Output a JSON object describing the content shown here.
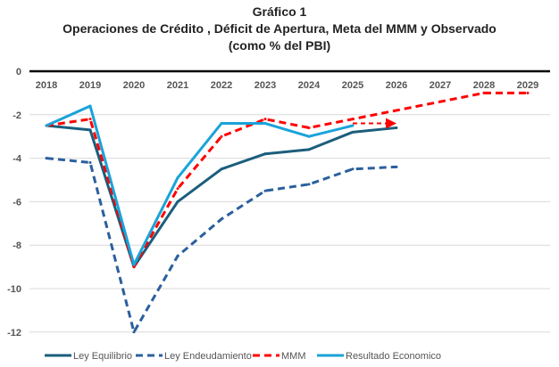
{
  "chart_data": {
    "type": "line",
    "title": "Gráfico 1",
    "subtitle": "Operaciones de Crédito , Déficit de Apertura, Meta del MMM y Observado",
    "subtitle2": "(como % del PBI)",
    "xlabel": "",
    "ylabel": "",
    "x": [
      "2018",
      "2019",
      "2020",
      "2021",
      "2022",
      "2023",
      "2024",
      "2025",
      "2026",
      "2027",
      "2028",
      "2029"
    ],
    "yticks": [
      0,
      -2,
      -4,
      -6,
      -8,
      -10,
      -12
    ],
    "ylim": [
      -12.3,
      0
    ],
    "grid": true,
    "legend_position": "bottom",
    "series": [
      {
        "name": "Ley Equilibrio",
        "color": "#1b5e7c",
        "style": "solid",
        "values": [
          -2.5,
          -2.7,
          -9.0,
          -6.0,
          -4.5,
          -3.8,
          -3.6,
          -2.8,
          -2.6,
          null,
          null,
          null
        ]
      },
      {
        "name": "Ley Endeudamiento",
        "color": "#2a5f9e",
        "style": "dashed",
        "values": [
          -4.0,
          -4.2,
          -12.0,
          -8.5,
          -6.8,
          -5.5,
          -5.2,
          -4.5,
          -4.4,
          null,
          null,
          null
        ]
      },
      {
        "name": "MMM",
        "color": "#ff0000",
        "style": "dashed",
        "values": [
          -2.5,
          -2.2,
          -9.0,
          -5.4,
          -3.0,
          -2.2,
          -2.6,
          -2.2,
          -1.8,
          -1.4,
          -1.0,
          -1.0
        ]
      },
      {
        "name": "Resultado Economico",
        "color": "#1aa3d9",
        "style": "solid",
        "values": [
          -2.5,
          -1.6,
          -8.9,
          -4.9,
          -2.4,
          -2.4,
          -3.0,
          -2.5,
          null,
          null,
          null,
          null
        ]
      }
    ],
    "annotations": [
      {
        "type": "arrow",
        "color": "#ff0000",
        "from": [
          "2025",
          -2.4
        ],
        "to": [
          "2026",
          -2.4
        ]
      }
    ]
  }
}
